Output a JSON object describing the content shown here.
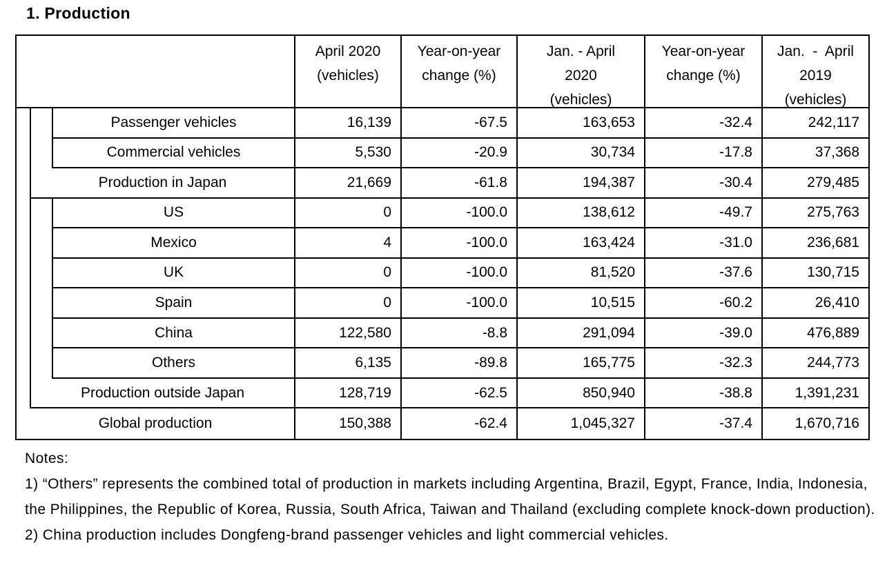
{
  "page": {
    "title": "1. Production"
  },
  "table": {
    "headers": [
      "April 2020\n(vehicles)",
      "Year-on-year\nchange (%)",
      "Jan. - April\n2020\n(vehicles)",
      "Year-on-year\nchange (%)",
      "Jan.  -  April\n2019\n(vehicles)"
    ],
    "rows": [
      {
        "label": "Passenger vehicles",
        "values": [
          "16,139",
          "-67.5",
          "163,653",
          "-32.4",
          "242,117"
        ]
      },
      {
        "label": "Commercial vehicles",
        "values": [
          "5,530",
          "-20.9",
          "30,734",
          "-17.8",
          "37,368"
        ]
      },
      {
        "label": "Production in Japan",
        "values": [
          "21,669",
          "-61.8",
          "194,387",
          "-30.4",
          "279,485"
        ]
      },
      {
        "label": "US",
        "values": [
          "0",
          "-100.0",
          "138,612",
          "-49.7",
          "275,763"
        ]
      },
      {
        "label": "Mexico",
        "values": [
          "4",
          "-100.0",
          "163,424",
          "-31.0",
          "236,681"
        ]
      },
      {
        "label": "UK",
        "values": [
          "0",
          "-100.0",
          "81,520",
          "-37.6",
          "130,715"
        ]
      },
      {
        "label": "Spain",
        "values": [
          "0",
          "-100.0",
          "10,515",
          "-60.2",
          "26,410"
        ]
      },
      {
        "label": "China",
        "values": [
          "122,580",
          "-8.8",
          "291,094",
          "-39.0",
          "476,889"
        ]
      },
      {
        "label": "Others",
        "values": [
          "6,135",
          "-89.8",
          "165,775",
          "-32.3",
          "244,773"
        ]
      },
      {
        "label": "Production outside Japan",
        "values": [
          "128,719",
          "-62.5",
          "850,940",
          "-38.8",
          "1,391,231"
        ]
      },
      {
        "label": "Global production",
        "values": [
          "150,388",
          "-62.4",
          "1,045,327",
          "-37.4",
          "1,670,716"
        ]
      }
    ]
  },
  "notes": {
    "heading": "Notes:",
    "line1": "1) “Others” represents the combined total of production in markets including Argentina, Brazil, Egypt, France, India, Indonesia,",
    "line2": "the Philippines, the Republic of Korea, Russia, South Africa, Taiwan and Thailand (excluding complete knock-down production).",
    "line3": "2) China production includes Dongfeng-brand passenger vehicles and light commercial vehicles."
  }
}
